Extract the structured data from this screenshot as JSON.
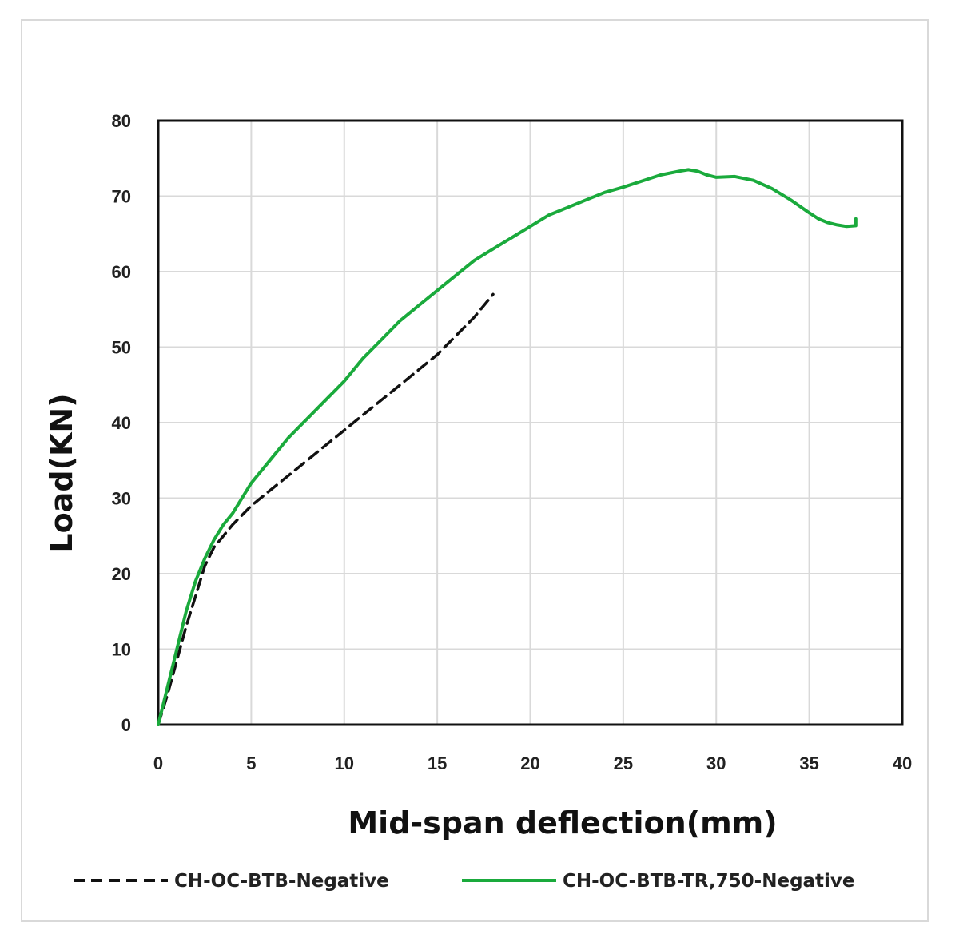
{
  "chart_data": {
    "type": "line",
    "title": "",
    "xlabel": "Mid-span deflection(mm)",
    "ylabel": "Load(KN)",
    "xlim": [
      0,
      40
    ],
    "ylim": [
      0,
      80
    ],
    "xticks": [
      0,
      5,
      10,
      15,
      20,
      25,
      30,
      35,
      40
    ],
    "yticks": [
      0,
      10,
      20,
      30,
      40,
      50,
      60,
      70,
      80
    ],
    "grid": true,
    "legend": "bottom",
    "series": [
      {
        "name": "CH-OC-BTB-Negative",
        "style": "dashed",
        "color": "#111111",
        "x": [
          0,
          0.5,
          1,
          1.5,
          2,
          2.5,
          3,
          4,
          5,
          6,
          7,
          8,
          9,
          10,
          11,
          12,
          13,
          14,
          15,
          16,
          17,
          18
        ],
        "y": [
          0,
          4,
          8.5,
          13,
          17,
          21,
          23.5,
          26.5,
          29,
          31,
          33,
          35,
          37,
          39,
          41,
          43,
          45,
          47,
          49,
          51.5,
          54,
          57
        ]
      },
      {
        "name": "CH-OC-BTB-TR,750-Negative",
        "style": "solid",
        "color": "#1aaa3c",
        "x": [
          0,
          0.5,
          1,
          1.5,
          2,
          2.5,
          3,
          3.5,
          4,
          5,
          6,
          7,
          8,
          9,
          10,
          11,
          12,
          13,
          14,
          15,
          16,
          17,
          18,
          19,
          20,
          21,
          22,
          23,
          24,
          25,
          26,
          27,
          28,
          28.5,
          29,
          29.5,
          30,
          31,
          32,
          33,
          34,
          35,
          35.5,
          36,
          36.5,
          37,
          37.5,
          37.5
        ],
        "y": [
          0,
          5,
          10,
          15,
          19,
          22,
          24.5,
          26.5,
          28,
          32,
          35,
          38,
          40.5,
          43,
          45.5,
          48.5,
          51,
          53.5,
          55.5,
          57.5,
          59.5,
          61.5,
          63,
          64.5,
          66,
          67.5,
          68.5,
          69.5,
          70.5,
          71.2,
          72,
          72.8,
          73.3,
          73.5,
          73.3,
          72.8,
          72.5,
          72.6,
          72.1,
          71,
          69.5,
          67.8,
          67,
          66.5,
          66.2,
          66.0,
          66.1,
          67.0
        ]
      }
    ]
  }
}
